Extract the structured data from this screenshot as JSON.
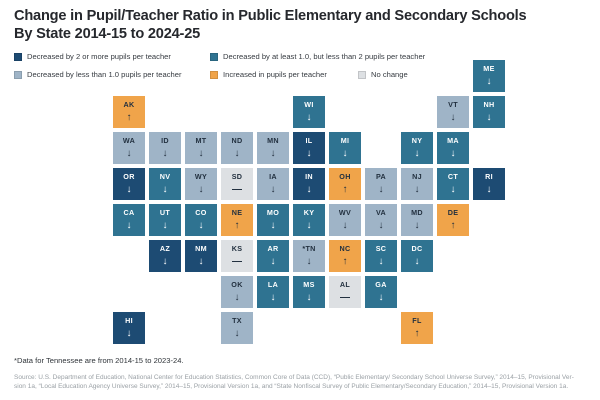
{
  "title": {
    "line1": "Change in Pupil/Teacher Ratio in Public Elementary and Secondary Schools",
    "line2": "By State 2014-15 to 2024-25"
  },
  "colors": {
    "background": "#ffffff",
    "text_dark": "#22303f",
    "text_light": "#ffffff",
    "title_text": "#26282d",
    "source_text": "#9aa0a5"
  },
  "footnote": "*Data for Tennessee are from 2014-15 to 2023-24.",
  "source": {
    "line1": "Source: U.S. Department of Education, National Center for Education Statistics, Common Core of Data (CCD), “Public Elementary/ Secondary School Universe Survey,” 2014–15, Provisional Ver-",
    "line2": "sion 1a, “Local Education Agency Universe Survey,” 2014–15, Provisional Version 1a, and “State Nonfiscal Survey of Public Elementary/Secondary Education,” 2014–15, Provisional Version 1a."
  },
  "chart_data": {
    "type": "heatmap",
    "subtype": "us-state-tile-cartogram",
    "title": "Change in Pupil/Teacher Ratio in Public Elementary and Secondary Schools By State 2014-15 to 2024-25",
    "legend_position": "top",
    "legend": [
      {
        "key": "dec2plus",
        "label": "Decreased by 2 or more pupils per teacher",
        "color": "#1d4b73"
      },
      {
        "key": "dec1to2",
        "label": "Decreased by at least 1.0, but less than 2 pupils per teacher",
        "color": "#2f7391"
      },
      {
        "key": "declt1",
        "label": "Decreased by less than 1.0 pupils per teacher",
        "color": "#9fb4c7"
      },
      {
        "key": "inc",
        "label": "Increased in pupils per teacher",
        "color": "#f0a44a"
      },
      {
        "key": "nochange",
        "label": "No change",
        "color": "#dde0e3"
      }
    ],
    "states": [
      {
        "abbr": "ME",
        "label": "ME",
        "row": 0,
        "col": 10,
        "category": "dec1to2",
        "symbol": "↓"
      },
      {
        "abbr": "AK",
        "label": "AK",
        "row": 1,
        "col": 0,
        "category": "inc",
        "symbol": "↑"
      },
      {
        "abbr": "WI",
        "label": "WI",
        "row": 1,
        "col": 5,
        "category": "dec1to2",
        "symbol": "↓"
      },
      {
        "abbr": "VT",
        "label": "VT",
        "row": 1,
        "col": 9,
        "category": "declt1",
        "symbol": "↓"
      },
      {
        "abbr": "NH",
        "label": "NH",
        "row": 1,
        "col": 10,
        "category": "dec1to2",
        "symbol": "↓"
      },
      {
        "abbr": "WA",
        "label": "WA",
        "row": 2,
        "col": 0,
        "category": "declt1",
        "symbol": "↓"
      },
      {
        "abbr": "ID",
        "label": "ID",
        "row": 2,
        "col": 1,
        "category": "declt1",
        "symbol": "↓"
      },
      {
        "abbr": "MT",
        "label": "MT",
        "row": 2,
        "col": 2,
        "category": "declt1",
        "symbol": "↓"
      },
      {
        "abbr": "ND",
        "label": "ND",
        "row": 2,
        "col": 3,
        "category": "declt1",
        "symbol": "↓"
      },
      {
        "abbr": "MN",
        "label": "MN",
        "row": 2,
        "col": 4,
        "category": "declt1",
        "symbol": "↓"
      },
      {
        "abbr": "IL",
        "label": "IL",
        "row": 2,
        "col": 5,
        "category": "dec2plus",
        "symbol": "↓"
      },
      {
        "abbr": "MI",
        "label": "MI",
        "row": 2,
        "col": 6,
        "category": "dec1to2",
        "symbol": "↓"
      },
      {
        "abbr": "NY",
        "label": "NY",
        "row": 2,
        "col": 8,
        "category": "dec1to2",
        "symbol": "↓"
      },
      {
        "abbr": "MA",
        "label": "MA",
        "row": 2,
        "col": 9,
        "category": "dec1to2",
        "symbol": "↓"
      },
      {
        "abbr": "OR",
        "label": "OR",
        "row": 3,
        "col": 0,
        "category": "dec2plus",
        "symbol": "↓"
      },
      {
        "abbr": "NV",
        "label": "NV",
        "row": 3,
        "col": 1,
        "category": "dec1to2",
        "symbol": "↓"
      },
      {
        "abbr": "WY",
        "label": "WY",
        "row": 3,
        "col": 2,
        "category": "declt1",
        "symbol": "↓"
      },
      {
        "abbr": "SD",
        "label": "SD",
        "row": 3,
        "col": 3,
        "category": "nochange",
        "symbol": "—"
      },
      {
        "abbr": "IA",
        "label": "IA",
        "row": 3,
        "col": 4,
        "category": "declt1",
        "symbol": "↓"
      },
      {
        "abbr": "IN",
        "label": "IN",
        "row": 3,
        "col": 5,
        "category": "dec2plus",
        "symbol": "↓"
      },
      {
        "abbr": "OH",
        "label": "OH",
        "row": 3,
        "col": 6,
        "category": "inc",
        "symbol": "↑"
      },
      {
        "abbr": "PA",
        "label": "PA",
        "row": 3,
        "col": 7,
        "category": "declt1",
        "symbol": "↓"
      },
      {
        "abbr": "NJ",
        "label": "NJ",
        "row": 3,
        "col": 8,
        "category": "declt1",
        "symbol": "↓"
      },
      {
        "abbr": "CT",
        "label": "CT",
        "row": 3,
        "col": 9,
        "category": "dec1to2",
        "symbol": "↓"
      },
      {
        "abbr": "RI",
        "label": "RI",
        "row": 3,
        "col": 10,
        "category": "dec2plus",
        "symbol": "↓"
      },
      {
        "abbr": "CA",
        "label": "CA",
        "row": 4,
        "col": 0,
        "category": "dec1to2",
        "symbol": "↓"
      },
      {
        "abbr": "UT",
        "label": "UT",
        "row": 4,
        "col": 1,
        "category": "dec1to2",
        "symbol": "↓"
      },
      {
        "abbr": "CO",
        "label": "CO",
        "row": 4,
        "col": 2,
        "category": "dec1to2",
        "symbol": "↓"
      },
      {
        "abbr": "NE",
        "label": "NE",
        "row": 4,
        "col": 3,
        "category": "inc",
        "symbol": "↑"
      },
      {
        "abbr": "MO",
        "label": "MO",
        "row": 4,
        "col": 4,
        "category": "dec1to2",
        "symbol": "↓"
      },
      {
        "abbr": "KY",
        "label": "KY",
        "row": 4,
        "col": 5,
        "category": "dec1to2",
        "symbol": "↓"
      },
      {
        "abbr": "WV",
        "label": "WV",
        "row": 4,
        "col": 6,
        "category": "declt1",
        "symbol": "↓"
      },
      {
        "abbr": "VA",
        "label": "VA",
        "row": 4,
        "col": 7,
        "category": "declt1",
        "symbol": "↓"
      },
      {
        "abbr": "MD",
        "label": "MD",
        "row": 4,
        "col": 8,
        "category": "declt1",
        "symbol": "↓"
      },
      {
        "abbr": "DE",
        "label": "DE",
        "row": 4,
        "col": 9,
        "category": "inc",
        "symbol": "↑"
      },
      {
        "abbr": "AZ",
        "label": "AZ",
        "row": 5,
        "col": 1,
        "category": "dec2plus",
        "symbol": "↓"
      },
      {
        "abbr": "NM",
        "label": "NM",
        "row": 5,
        "col": 2,
        "category": "dec2plus",
        "symbol": "↓"
      },
      {
        "abbr": "KS",
        "label": "KS",
        "row": 5,
        "col": 3,
        "category": "nochange",
        "symbol": "—"
      },
      {
        "abbr": "AR",
        "label": "AR",
        "row": 5,
        "col": 4,
        "category": "dec1to2",
        "symbol": "↓"
      },
      {
        "abbr": "TN",
        "label": "*TN",
        "row": 5,
        "col": 5,
        "category": "declt1",
        "symbol": "↓"
      },
      {
        "abbr": "NC",
        "label": "NC",
        "row": 5,
        "col": 6,
        "category": "inc",
        "symbol": "↑"
      },
      {
        "abbr": "SC",
        "label": "SC",
        "row": 5,
        "col": 7,
        "category": "dec1to2",
        "symbol": "↓"
      },
      {
        "abbr": "DC",
        "label": "DC",
        "row": 5,
        "col": 8,
        "category": "dec1to2",
        "symbol": "↓"
      },
      {
        "abbr": "OK",
        "label": "OK",
        "row": 6,
        "col": 3,
        "category": "declt1",
        "symbol": "↓"
      },
      {
        "abbr": "LA",
        "label": "LA",
        "row": 6,
        "col": 4,
        "category": "dec1to2",
        "symbol": "↓"
      },
      {
        "abbr": "MS",
        "label": "MS",
        "row": 6,
        "col": 5,
        "category": "dec1to2",
        "symbol": "↓"
      },
      {
        "abbr": "AL",
        "label": "AL",
        "row": 6,
        "col": 6,
        "category": "nochange",
        "symbol": "—"
      },
      {
        "abbr": "GA",
        "label": "GA",
        "row": 6,
        "col": 7,
        "category": "dec1to2",
        "symbol": "↓"
      },
      {
        "abbr": "HI",
        "label": "HI",
        "row": 7,
        "col": 0,
        "category": "dec2plus",
        "symbol": "↓"
      },
      {
        "abbr": "TX",
        "label": "TX",
        "row": 7,
        "col": 3,
        "category": "declt1",
        "symbol": "↓"
      },
      {
        "abbr": "FL",
        "label": "FL",
        "row": 7,
        "col": 8,
        "category": "inc",
        "symbol": "↑"
      }
    ]
  }
}
